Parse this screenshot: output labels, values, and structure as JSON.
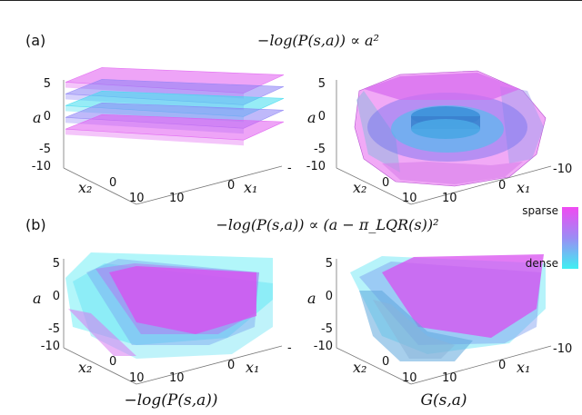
{
  "chart_data": [
    {
      "type": "surface3d",
      "panel_label": "(a)",
      "row_title": "−log(P(s,a)) ∝ a²",
      "zlabel": "a",
      "xlabel": "x₁",
      "ylabel": "x₂",
      "ztick_labels": [
        "5",
        "0",
        "-5",
        "-10"
      ],
      "x1_tick_labels": [
        "10",
        "0",
        "-"
      ],
      "x2_tick_labels": [
        "10",
        "0"
      ],
      "zlim": [
        -10,
        5
      ],
      "layer_levels_a": [
        4,
        2,
        0,
        -2,
        -4
      ],
      "layer_colors": [
        "#e05af0",
        "#8a7ff5",
        "#3fdcef",
        "#8a7ff5",
        "#e05af0"
      ],
      "caption": ""
    },
    {
      "type": "surface3d",
      "panel_label": "",
      "row_title": "",
      "zlabel": "a",
      "xlabel": "x₁",
      "ylabel": "x₂",
      "ztick_labels": [
        "5",
        "0",
        "-5",
        "-10"
      ],
      "x1_tick_labels": [
        "10",
        "0",
        "-10"
      ],
      "x2_tick_labels": [
        "10",
        "0"
      ],
      "zlim": [
        -10,
        5
      ],
      "shape": "nested bounded level sets",
      "caption": ""
    },
    {
      "type": "surface3d",
      "panel_label": "(b)",
      "row_title": "−log(P(s,a)) ∝ (a − π_LQR(s))²",
      "zlabel": "a",
      "xlabel": "x₁",
      "ylabel": "x₂",
      "ztick_labels": [
        "5",
        "0",
        "-5",
        "-10"
      ],
      "x1_tick_labels": [
        "10",
        "0",
        "-"
      ],
      "x2_tick_labels": [
        "10",
        "0"
      ],
      "zlim": [
        -10,
        5
      ],
      "shape": "tilted planes",
      "caption": "−log(P(s,a))"
    },
    {
      "type": "surface3d",
      "panel_label": "",
      "row_title": "",
      "zlabel": "a",
      "xlabel": "x₁",
      "ylabel": "x₂",
      "ztick_labels": [
        "5",
        "0",
        "-5",
        "-10"
      ],
      "x1_tick_labels": [
        "10",
        "0",
        "-10"
      ],
      "x2_tick_labels": [
        "10",
        "0"
      ],
      "zlim": [
        -10,
        5
      ],
      "shape": "tilted bounded level sets",
      "caption": "G(s,a)"
    }
  ],
  "colorbar": {
    "top_label": "sparse",
    "bottom_label": "dense",
    "top_color": "#f04af2",
    "bottom_color": "#3ff0f2"
  }
}
